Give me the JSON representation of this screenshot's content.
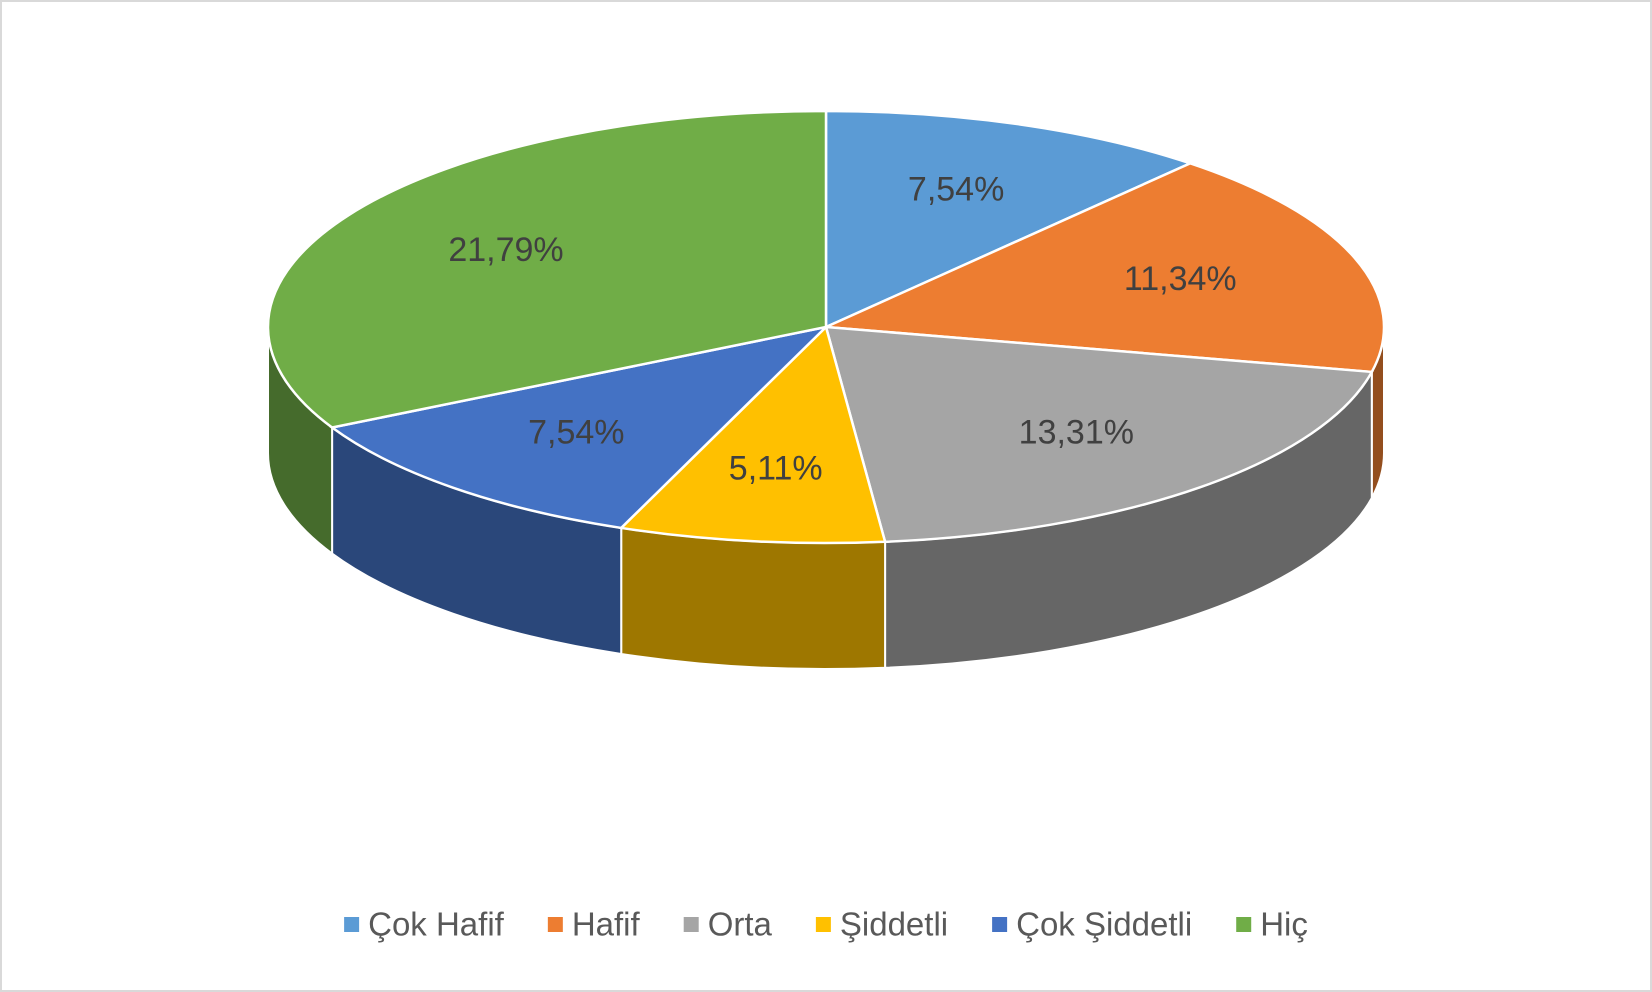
{
  "chart_data": {
    "type": "pie",
    "categories": [
      "Çok Hafif",
      "Hafif",
      "Orta",
      "Şiddetli",
      "Çok Şiddetli",
      "Hiç"
    ],
    "values": [
      7.54,
      11.34,
      13.31,
      5.11,
      7.54,
      21.79
    ],
    "value_labels": [
      "7,54%",
      "11,34%",
      "13,31%",
      "5,11%",
      "7,54%",
      "21,79%"
    ],
    "colors": [
      "#5b9bd5",
      "#ed7d31",
      "#a5a5a5",
      "#ffc000",
      "#4472c4",
      "#70ad47"
    ],
    "legend": "bottom"
  }
}
